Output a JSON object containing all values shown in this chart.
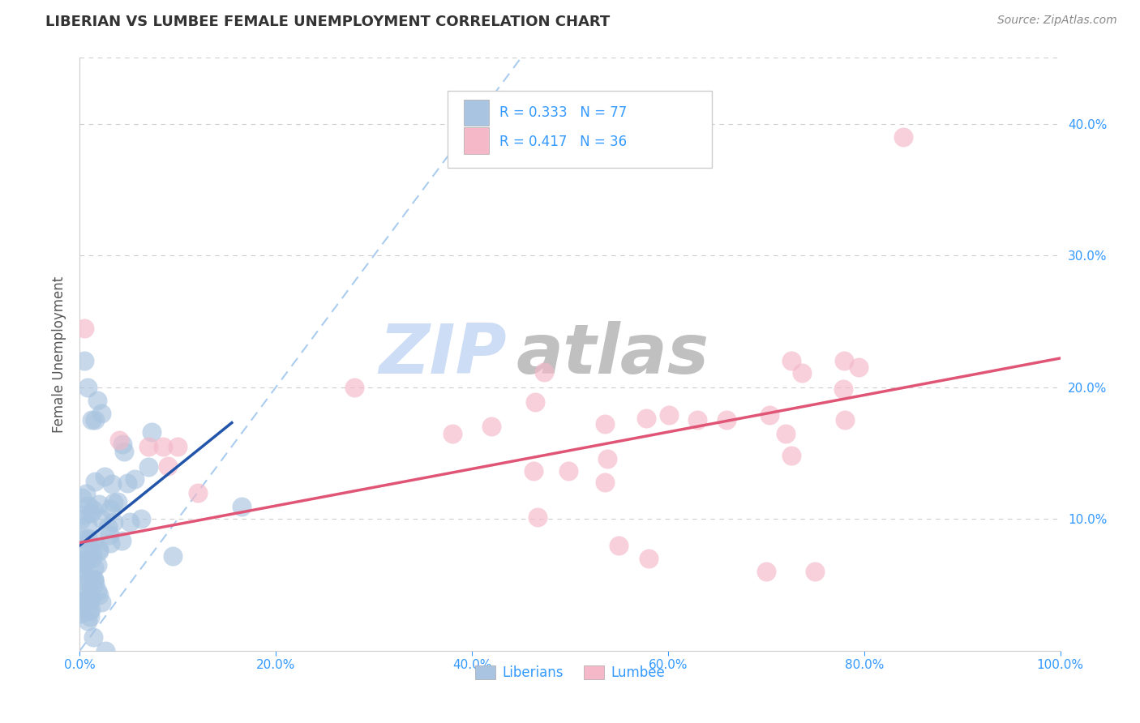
{
  "title": "LIBERIAN VS LUMBEE FEMALE UNEMPLOYMENT CORRELATION CHART",
  "source": "Source: ZipAtlas.com",
  "ylabel": "Female Unemployment",
  "xlim": [
    0,
    1.0
  ],
  "ylim": [
    0,
    0.45
  ],
  "xticks": [
    0.0,
    0.2,
    0.4,
    0.6,
    0.8,
    1.0
  ],
  "xticklabels": [
    "0.0%",
    "20.0%",
    "40.0%",
    "60.0%",
    "80.0%",
    "100.0%"
  ],
  "yticks": [
    0.0,
    0.1,
    0.2,
    0.3,
    0.4
  ],
  "yticklabels": [
    "",
    "10.0%",
    "20.0%",
    "30.0%",
    "40.0%"
  ],
  "liberian_R": 0.333,
  "liberian_N": 77,
  "lumbee_R": 0.417,
  "lumbee_N": 36,
  "liberian_color": "#a8c4e0",
  "lumbee_color": "#f4b8c8",
  "liberian_line_color": "#2255aa",
  "lumbee_line_color": "#e05575",
  "diagonal_color": "#aaccee",
  "legend_color": "#3399ff",
  "tick_color": "#3399ff",
  "background_color": "#ffffff",
  "grid_color": "#cccccc",
  "title_color": "#333333",
  "source_color": "#888888",
  "ylabel_color": "#555555"
}
